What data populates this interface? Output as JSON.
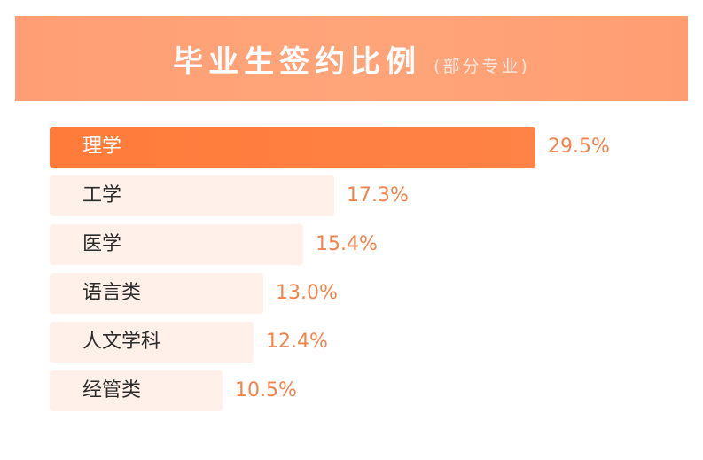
{
  "header": {
    "title": "毕业生签约比例",
    "subtitle": "(部分专业)"
  },
  "colors": {
    "header_bg": "#ffa276",
    "top_bar": "#ff7d3d",
    "other_bars": "#fff0e9",
    "value_text": "#f2834c"
  },
  "chart_data": {
    "type": "bar",
    "orientation": "horizontal",
    "title": "毕业生签约比例",
    "subtitle": "(部分专业)",
    "categories": [
      "理学",
      "工学",
      "医学",
      "语言类",
      "人文学科",
      "经管类"
    ],
    "values": [
      29.5,
      17.3,
      15.4,
      13.0,
      12.4,
      10.5
    ],
    "value_labels": [
      "29.5%",
      "17.3%",
      "15.4%",
      "13.0%",
      "12.4%",
      "10.5%"
    ],
    "unit": "%",
    "highlight_index": 0,
    "grid": false,
    "legend": "none"
  }
}
